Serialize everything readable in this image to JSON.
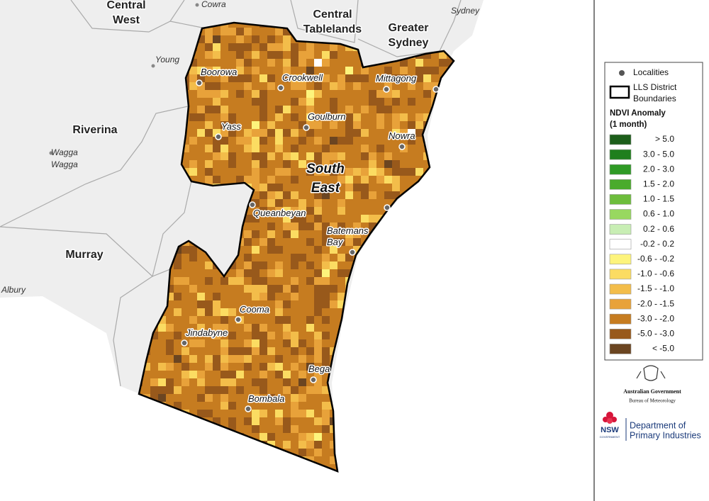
{
  "map": {
    "regions": [
      {
        "lines": [
          "Central",
          "West"
        ]
      },
      {
        "lines": [
          "Central",
          "Tablelands"
        ]
      },
      {
        "lines": [
          "Greater",
          "Sydney"
        ]
      },
      {
        "lines": [
          "Riverina"
        ]
      },
      {
        "lines": [
          "Murray"
        ]
      },
      {
        "lines": [
          "South",
          "East"
        ]
      }
    ],
    "other_places": [
      {
        "lines": [
          "Cowra"
        ]
      },
      {
        "lines": [
          "Sydney"
        ]
      },
      {
        "lines": [
          "Young"
        ]
      },
      {
        "lines": [
          "Wagga",
          "Wagga"
        ]
      },
      {
        "lines": [
          "Albury"
        ]
      }
    ],
    "localities": [
      {
        "lines": [
          "Boorowa"
        ]
      },
      {
        "lines": [
          "Crookwell"
        ]
      },
      {
        "lines": [
          "Mittagong"
        ]
      },
      {
        "lines": [
          "Goulburn"
        ]
      },
      {
        "lines": [
          "Yass"
        ]
      },
      {
        "lines": [
          "Nowra"
        ]
      },
      {
        "lines": [
          "Queanbeyan"
        ]
      },
      {
        "lines": [
          "Batemans",
          "Bay"
        ]
      },
      {
        "lines": [
          "Cooma"
        ]
      },
      {
        "lines": [
          "Jindabyne"
        ]
      },
      {
        "lines": [
          "Bega"
        ]
      },
      {
        "lines": [
          "Bombala"
        ]
      }
    ]
  },
  "legend": {
    "localities": "Localities",
    "boundary_lines": [
      "LLS District",
      "Boundaries"
    ],
    "title_lines": [
      "NDVI Anomaly",
      "(1 month)"
    ],
    "classes": [
      {
        "label": ">  5.0",
        "color": "#1c5e1a"
      },
      {
        "label": "3.0 -  5.0",
        "color": "#1f7f1d"
      },
      {
        "label": "2.0 -  3.0",
        "color": "#2f9a25"
      },
      {
        "label": "1.5 -  2.0",
        "color": "#4aab2c"
      },
      {
        "label": "1.0 -  1.5",
        "color": "#6dbd3c"
      },
      {
        "label": "0.6 -  1.0",
        "color": "#98d860"
      },
      {
        "label": "0.2 -  0.6",
        "color": "#c8eeb4"
      },
      {
        "label": "-0.2 -  0.2",
        "color": "#ffffff"
      },
      {
        "label": "-0.6 - -0.2",
        "color": "#fdf47c"
      },
      {
        "label": "-1.0 - -0.6",
        "color": "#fbdc62"
      },
      {
        "label": "-1.5 - -1.0",
        "color": "#f3bd4a"
      },
      {
        "label": "-2.0 - -1.5",
        "color": "#e8a23a"
      },
      {
        "label": "-3.0 - -2.0",
        "color": "#c67c20"
      },
      {
        "label": "-5.0 - -3.0",
        "color": "#98591b"
      },
      {
        "label": "<  -5.0",
        "color": "#6b4521"
      }
    ]
  },
  "logos": {
    "bom": [
      "Australian Government",
      "Bureau of Meteorology"
    ],
    "nsw": [
      "NSW",
      "GOVERNMENT"
    ],
    "dpi": [
      "Department of",
      "Primary Industries"
    ]
  }
}
